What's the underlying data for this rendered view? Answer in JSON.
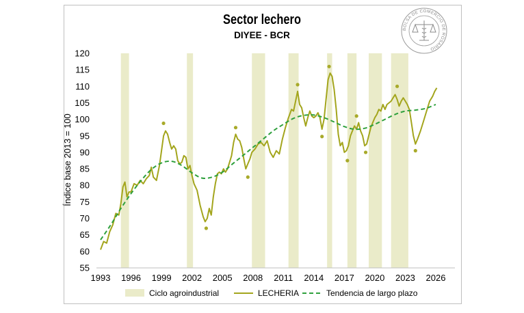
{
  "chart_data": {
    "type": "line",
    "title": "Sector lechero",
    "subtitle": "DIYEE - BCR",
    "ylabel": "Índice base 2013 = 100",
    "xlabel": "",
    "xlim": [
      1993,
      2027
    ],
    "ylim": [
      55,
      120
    ],
    "x_ticks": [
      1993,
      1996,
      1999,
      2002,
      2005,
      2008,
      2011,
      2014,
      2017,
      2020,
      2023,
      2026
    ],
    "y_ticks": [
      55,
      60,
      65,
      70,
      75,
      80,
      85,
      90,
      95,
      100,
      105,
      110,
      115,
      120
    ],
    "cycle_bands": [
      [
        1995.0,
        1995.8
      ],
      [
        2001.5,
        2002.1
      ],
      [
        2007.9,
        2009.2
      ],
      [
        2011.5,
        2012.5
      ],
      [
        2015.3,
        2015.8
      ],
      [
        2017.3,
        2018.2
      ],
      [
        2019.4,
        2020.7
      ],
      [
        2021.6,
        2023.3
      ]
    ],
    "series": [
      {
        "name": "LECHERIA",
        "color": "#a3a51c",
        "points": [
          [
            1993.0,
            60.5
          ],
          [
            1993.3,
            63.0
          ],
          [
            1993.6,
            62.5
          ],
          [
            1993.9,
            66.0
          ],
          [
            1994.2,
            68.0
          ],
          [
            1994.5,
            71.5
          ],
          [
            1994.8,
            71.0
          ],
          [
            1995.0,
            74.5
          ],
          [
            1995.2,
            79.5
          ],
          [
            1995.4,
            81.0
          ],
          [
            1995.6,
            76.5
          ],
          [
            1995.8,
            78.0
          ],
          [
            1996.0,
            78.0
          ],
          [
            1996.3,
            80.5
          ],
          [
            1996.6,
            80.0
          ],
          [
            1996.9,
            81.5
          ],
          [
            1997.2,
            80.5
          ],
          [
            1997.5,
            82.0
          ],
          [
            1997.8,
            83.0
          ],
          [
            1998.0,
            85.5
          ],
          [
            1998.2,
            82.5
          ],
          [
            1998.5,
            81.5
          ],
          [
            1998.8,
            86.0
          ],
          [
            1999.0,
            90.5
          ],
          [
            1999.2,
            95.0
          ],
          [
            1999.4,
            96.5
          ],
          [
            1999.6,
            95.5
          ],
          [
            1999.8,
            93.0
          ],
          [
            2000.0,
            91.0
          ],
          [
            2000.2,
            92.0
          ],
          [
            2000.4,
            91.0
          ],
          [
            2000.6,
            87.5
          ],
          [
            2000.8,
            86.5
          ],
          [
            2001.0,
            87.0
          ],
          [
            2001.2,
            89.0
          ],
          [
            2001.4,
            88.5
          ],
          [
            2001.6,
            85.0
          ],
          [
            2001.8,
            86.0
          ],
          [
            2002.0,
            83.0
          ],
          [
            2002.2,
            80.5
          ],
          [
            2002.5,
            78.5
          ],
          [
            2002.8,
            74.0
          ],
          [
            2003.1,
            70.5
          ],
          [
            2003.3,
            69.0
          ],
          [
            2003.5,
            70.0
          ],
          [
            2003.7,
            73.0
          ],
          [
            2003.9,
            71.0
          ],
          [
            2004.1,
            76.5
          ],
          [
            2004.3,
            80.5
          ],
          [
            2004.5,
            83.5
          ],
          [
            2004.7,
            84.0
          ],
          [
            2004.9,
            83.5
          ],
          [
            2005.1,
            85.0
          ],
          [
            2005.3,
            84.0
          ],
          [
            2005.5,
            85.0
          ],
          [
            2005.7,
            87.0
          ],
          [
            2005.9,
            89.0
          ],
          [
            2006.1,
            93.0
          ],
          [
            2006.3,
            95.5
          ],
          [
            2006.5,
            94.0
          ],
          [
            2006.7,
            93.5
          ],
          [
            2006.9,
            91.5
          ],
          [
            2007.1,
            88.0
          ],
          [
            2007.3,
            85.0
          ],
          [
            2007.5,
            86.5
          ],
          [
            2007.7,
            88.0
          ],
          [
            2007.9,
            90.0
          ],
          [
            2008.2,
            91.0
          ],
          [
            2008.5,
            92.5
          ],
          [
            2008.8,
            93.0
          ],
          [
            2009.1,
            92.0
          ],
          [
            2009.4,
            93.5
          ],
          [
            2009.7,
            90.0
          ],
          [
            2010.0,
            88.5
          ],
          [
            2010.3,
            90.5
          ],
          [
            2010.6,
            89.5
          ],
          [
            2010.9,
            94.0
          ],
          [
            2011.2,
            97.5
          ],
          [
            2011.5,
            100.5
          ],
          [
            2011.8,
            103.0
          ],
          [
            2012.0,
            102.5
          ],
          [
            2012.2,
            105.5
          ],
          [
            2012.4,
            108.5
          ],
          [
            2012.6,
            104.5
          ],
          [
            2012.8,
            103.5
          ],
          [
            2013.0,
            100.5
          ],
          [
            2013.2,
            98.0
          ],
          [
            2013.4,
            100.5
          ],
          [
            2013.6,
            102.5
          ],
          [
            2013.8,
            101.0
          ],
          [
            2014.0,
            100.5
          ],
          [
            2014.2,
            101.0
          ],
          [
            2014.4,
            102.0
          ],
          [
            2014.6,
            100.5
          ],
          [
            2014.8,
            97.0
          ],
          [
            2015.0,
            100.0
          ],
          [
            2015.2,
            106.0
          ],
          [
            2015.4,
            112.0
          ],
          [
            2015.6,
            114.0
          ],
          [
            2015.8,
            113.0
          ],
          [
            2016.0,
            109.0
          ],
          [
            2016.2,
            103.0
          ],
          [
            2016.4,
            95.5
          ],
          [
            2016.6,
            92.0
          ],
          [
            2016.8,
            93.0
          ],
          [
            2017.0,
            90.0
          ],
          [
            2017.2,
            90.5
          ],
          [
            2017.4,
            92.0
          ],
          [
            2017.6,
            95.0
          ],
          [
            2017.8,
            96.5
          ],
          [
            2018.0,
            98.0
          ],
          [
            2018.2,
            97.0
          ],
          [
            2018.4,
            99.0
          ],
          [
            2018.6,
            96.5
          ],
          [
            2018.8,
            95.0
          ],
          [
            2019.0,
            92.0
          ],
          [
            2019.2,
            92.5
          ],
          [
            2019.4,
            95.0
          ],
          [
            2019.6,
            97.5
          ],
          [
            2019.8,
            99.0
          ],
          [
            2020.0,
            100.5
          ],
          [
            2020.2,
            101.5
          ],
          [
            2020.4,
            103.0
          ],
          [
            2020.6,
            102.5
          ],
          [
            2020.8,
            104.5
          ],
          [
            2021.0,
            103.0
          ],
          [
            2021.2,
            104.5
          ],
          [
            2021.4,
            105.0
          ],
          [
            2021.6,
            105.5
          ],
          [
            2021.8,
            106.5
          ],
          [
            2022.0,
            107.5
          ],
          [
            2022.2,
            106.0
          ],
          [
            2022.4,
            104.0
          ],
          [
            2022.6,
            105.5
          ],
          [
            2022.8,
            106.5
          ],
          [
            2023.0,
            105.5
          ],
          [
            2023.2,
            104.5
          ],
          [
            2023.4,
            103.0
          ],
          [
            2023.6,
            99.0
          ],
          [
            2023.8,
            95.0
          ],
          [
            2024.0,
            92.5
          ],
          [
            2024.2,
            94.0
          ],
          [
            2024.5,
            96.5
          ],
          [
            2024.8,
            99.5
          ],
          [
            2025.1,
            102.5
          ],
          [
            2025.4,
            105.5
          ],
          [
            2025.7,
            107.0
          ],
          [
            2025.9,
            108.5
          ],
          [
            2026.1,
            109.5
          ]
        ]
      },
      {
        "name": "Tendencia de largo plazo",
        "color": "#2ea03c",
        "points": [
          [
            1993.0,
            63.5
          ],
          [
            1994.0,
            68.0
          ],
          [
            1995.0,
            73.0
          ],
          [
            1996.0,
            77.5
          ],
          [
            1997.0,
            81.5
          ],
          [
            1998.0,
            84.8
          ],
          [
            1999.0,
            86.8
          ],
          [
            2000.0,
            87.3
          ],
          [
            2001.0,
            86.0
          ],
          [
            2002.0,
            83.8
          ],
          [
            2003.0,
            82.2
          ],
          [
            2004.0,
            82.5
          ],
          [
            2005.0,
            84.0
          ],
          [
            2006.0,
            86.5
          ],
          [
            2007.0,
            89.0
          ],
          [
            2008.0,
            91.5
          ],
          [
            2009.0,
            94.0
          ],
          [
            2010.0,
            96.5
          ],
          [
            2011.0,
            98.5
          ],
          [
            2012.0,
            100.3
          ],
          [
            2013.0,
            101.2
          ],
          [
            2014.0,
            101.3
          ],
          [
            2015.0,
            100.5
          ],
          [
            2016.0,
            99.2
          ],
          [
            2017.0,
            97.8
          ],
          [
            2018.0,
            97.0
          ],
          [
            2019.0,
            97.3
          ],
          [
            2020.0,
            98.5
          ],
          [
            2021.0,
            100.0
          ],
          [
            2022.0,
            101.5
          ],
          [
            2023.0,
            102.5
          ],
          [
            2024.0,
            102.8
          ],
          [
            2025.0,
            103.3
          ],
          [
            2026.0,
            104.5
          ]
        ]
      }
    ],
    "markers": [
      [
        1999.2,
        98.8
      ],
      [
        2003.4,
        67.0
      ],
      [
        2006.3,
        97.5
      ],
      [
        2007.5,
        82.5
      ],
      [
        2012.4,
        110.5
      ],
      [
        2014.8,
        94.8
      ],
      [
        2015.5,
        116.0
      ],
      [
        2017.3,
        87.5
      ],
      [
        2018.2,
        101.0
      ],
      [
        2019.1,
        90.0
      ],
      [
        2022.2,
        110.0
      ],
      [
        2024.0,
        90.5
      ]
    ],
    "legend": {
      "position": "bottom",
      "entries": [
        "Ciclo agroindustrial",
        "LECHERIA",
        "Tendencia de largo plazo"
      ]
    }
  },
  "logo": {
    "text": "BOLSA DE COMERCIO DE ROSARIO"
  },
  "colors": {
    "band": "#eaebc9",
    "series": "#a3a51c",
    "trend": "#2ea03c",
    "marker": "#a8aa2a"
  }
}
